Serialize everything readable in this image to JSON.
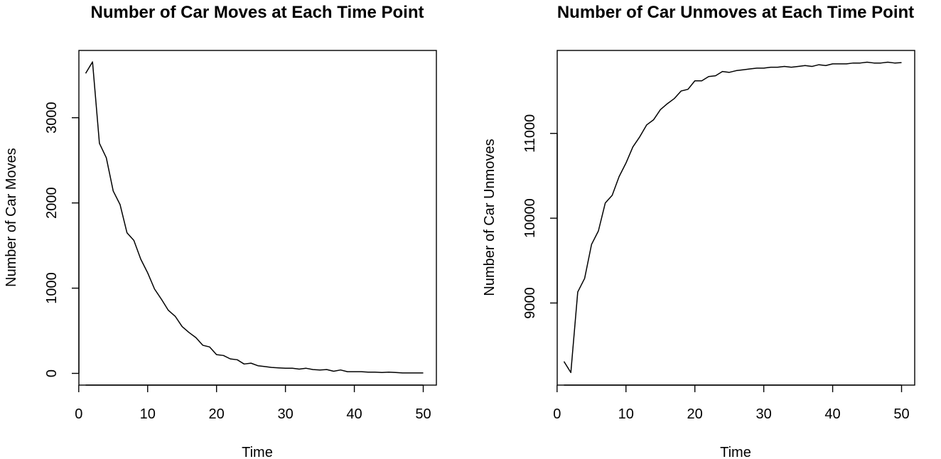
{
  "chart_data": [
    {
      "type": "line",
      "title": "Number of Car Moves at Each Time Point",
      "xlabel": "Time",
      "ylabel": "Number of Car Moves",
      "xlim": [
        1,
        50
      ],
      "ylim": [
        0,
        3660
      ],
      "x_ticks": [
        0,
        10,
        20,
        30,
        40,
        50
      ],
      "x_tick_labels": [
        "0",
        "10",
        "20",
        "30",
        "40",
        "50"
      ],
      "y_ticks": [
        0,
        1000,
        2000,
        3000
      ],
      "y_tick_labels": [
        "0",
        "1000",
        "2000",
        "3000"
      ],
      "grid": false,
      "legend": "none",
      "x": [
        1,
        2,
        3,
        4,
        5,
        6,
        7,
        8,
        9,
        10,
        11,
        12,
        13,
        14,
        15,
        16,
        17,
        18,
        19,
        20,
        21,
        22,
        23,
        24,
        25,
        26,
        27,
        28,
        29,
        30,
        31,
        32,
        33,
        34,
        35,
        36,
        37,
        38,
        39,
        40,
        41,
        42,
        43,
        44,
        45,
        46,
        47,
        48,
        49,
        50
      ],
      "series": [
        {
          "values": [
            3520,
            3655,
            2700,
            2530,
            2140,
            1980,
            1650,
            1560,
            1340,
            1180,
            990,
            870,
            740,
            670,
            550,
            480,
            420,
            330,
            310,
            220,
            210,
            170,
            160,
            110,
            120,
            90,
            80,
            70,
            65,
            60,
            60,
            50,
            60,
            45,
            40,
            45,
            25,
            40,
            20,
            20,
            20,
            15,
            15,
            10,
            15,
            10,
            5,
            5,
            5,
            5
          ]
        }
      ]
    },
    {
      "type": "line",
      "title": "Number of Car Unmoves at Each Time Point",
      "xlabel": "Time",
      "ylabel": "Number of Car Unmoves",
      "xlim": [
        1,
        50
      ],
      "ylim": [
        8170,
        11840
      ],
      "x_ticks": [
        0,
        10,
        20,
        30,
        40,
        50
      ],
      "x_tick_labels": [
        "0",
        "10",
        "20",
        "30",
        "40",
        "50"
      ],
      "y_ticks": [
        9000,
        10000,
        11000
      ],
      "y_tick_labels": [
        "9000",
        "10000",
        "11000"
      ],
      "grid": false,
      "legend": "none",
      "x": [
        1,
        2,
        3,
        4,
        5,
        6,
        7,
        8,
        9,
        10,
        11,
        12,
        13,
        14,
        15,
        16,
        17,
        18,
        19,
        20,
        21,
        22,
        23,
        24,
        25,
        26,
        27,
        28,
        29,
        30,
        31,
        32,
        33,
        34,
        35,
        36,
        37,
        38,
        39,
        40,
        41,
        42,
        43,
        44,
        45,
        46,
        47,
        48,
        49,
        50
      ],
      "series": [
        {
          "values": [
            8310,
            8180,
            9130,
            9290,
            9690,
            9850,
            10180,
            10270,
            10490,
            10650,
            10840,
            10960,
            11100,
            11160,
            11280,
            11350,
            11410,
            11500,
            11520,
            11620,
            11620,
            11670,
            11680,
            11730,
            11720,
            11740,
            11750,
            11760,
            11770,
            11770,
            11780,
            11780,
            11790,
            11780,
            11790,
            11800,
            11790,
            11810,
            11800,
            11820,
            11820,
            11820,
            11830,
            11830,
            11840,
            11830,
            11830,
            11840,
            11830,
            11835
          ]
        }
      ]
    }
  ]
}
